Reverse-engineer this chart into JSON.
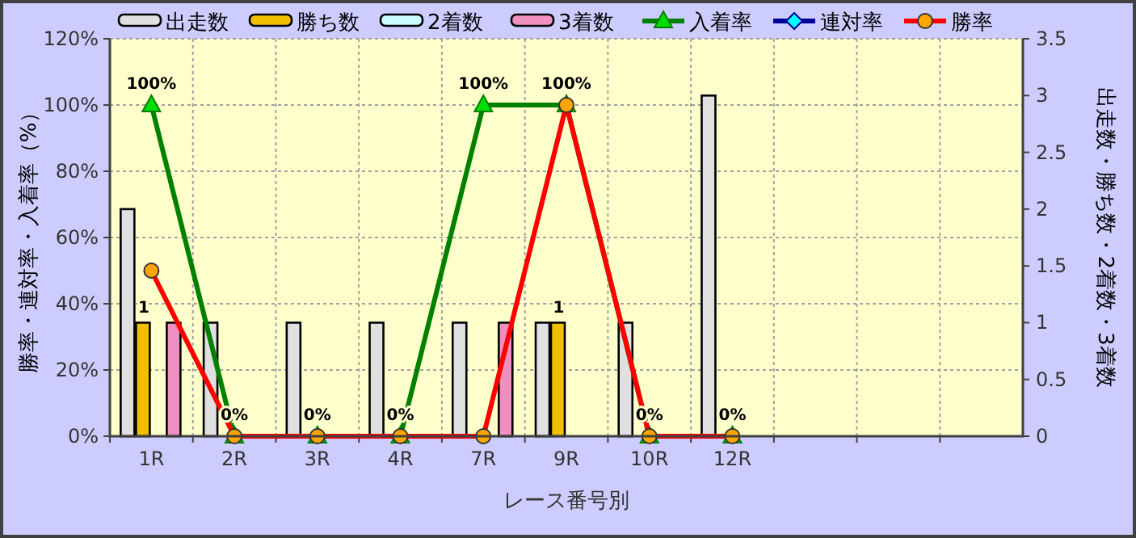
{
  "chart_data": {
    "type": "bar",
    "categories": [
      "1R",
      "2R",
      "3R",
      "4R",
      "7R",
      "9R",
      "10R",
      "12R",
      null,
      null,
      null
    ],
    "series": [
      {
        "name": "出走数",
        "axis": "y2",
        "color": "#e0e0e0",
        "values": [
          2,
          1,
          1,
          1,
          1,
          1,
          1,
          3,
          null,
          null,
          null
        ]
      },
      {
        "name": "勝ち数",
        "axis": "y2",
        "color": "#f0c000",
        "values": [
          1,
          0,
          0,
          0,
          0,
          1,
          0,
          0,
          null,
          null,
          null
        ],
        "value_labels": [
          "1",
          null,
          null,
          null,
          null,
          "1",
          null,
          null,
          null,
          null,
          null
        ]
      },
      {
        "name": "2着数",
        "axis": "y2",
        "color": "#ccffff",
        "values": [
          0,
          0,
          0,
          0,
          0,
          0,
          0,
          0,
          null,
          null,
          null
        ]
      },
      {
        "name": "3着数",
        "axis": "y2",
        "color": "#f090c0",
        "values": [
          1,
          0,
          0,
          0,
          1,
          0,
          0,
          0,
          null,
          null,
          null
        ]
      },
      {
        "name": "入着率",
        "type": "line",
        "marker": "triangle",
        "color": "#008000",
        "values": [
          100,
          0,
          0,
          0,
          100,
          100,
          0,
          0,
          null,
          null,
          null
        ],
        "value_labels": [
          "100%",
          "0%",
          "0%",
          "0%",
          "100%",
          "100%",
          "0%",
          "0%",
          null,
          null,
          null
        ]
      },
      {
        "name": "連対率",
        "type": "line",
        "marker": "diamond",
        "color": "#000099",
        "values": [
          null,
          null,
          null,
          null,
          null,
          null,
          null,
          null,
          null,
          null,
          null
        ]
      },
      {
        "name": "勝率",
        "type": "line",
        "marker": "circle",
        "color": "#ff0000",
        "values": [
          50,
          0,
          0,
          0,
          0,
          100,
          0,
          0,
          null,
          null,
          null
        ]
      }
    ],
    "xlabel": "レース番号別",
    "ylabel": "勝率・連対率・入着率（%）",
    "y2label": "出走数・勝ち数・2着数・3着数",
    "ylim": [
      0,
      120
    ],
    "yticks": [
      {
        "value": 0,
        "label": "0%"
      },
      {
        "value": 20,
        "label": "20%"
      },
      {
        "value": 40,
        "label": "40%"
      },
      {
        "value": 60,
        "label": "60%"
      },
      {
        "value": 80,
        "label": "80%"
      },
      {
        "value": 100,
        "label": "100%"
      },
      {
        "value": 120,
        "label": "120%"
      }
    ],
    "y2lim": [
      0,
      3.5
    ],
    "y2ticks": [
      0,
      0.5,
      1,
      1.5,
      2,
      2.5,
      3,
      3.5
    ],
    "grid": true,
    "legend": "top"
  }
}
